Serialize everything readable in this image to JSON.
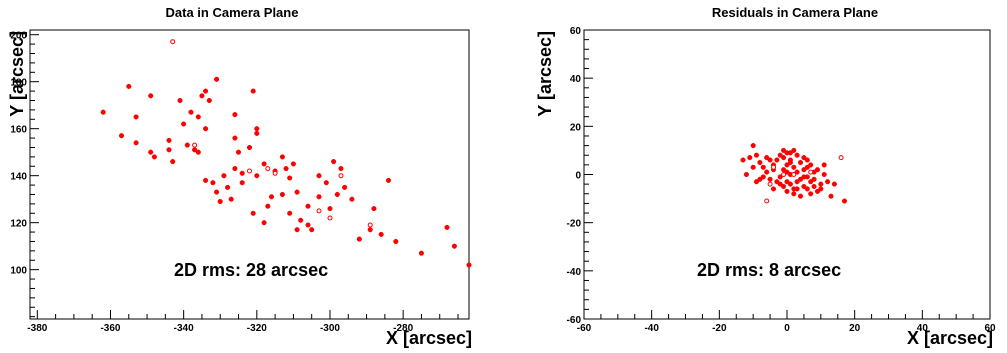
{
  "colors": {
    "marker": "#ff0000",
    "axis": "#000000",
    "background": "#ffffff"
  },
  "chart_data": [
    {
      "type": "scatter",
      "title": "Data in Camera Plane",
      "xlabel": "X [arcsec]",
      "ylabel": "Y [arcsec]",
      "xlim": [
        -382,
        -262
      ],
      "ylim": [
        79,
        202
      ],
      "xticks": [
        -380,
        -360,
        -340,
        -320,
        -300,
        -280
      ],
      "yticks": [
        100,
        120,
        140,
        160,
        180,
        200
      ],
      "annotation": "2D rms: 28 arcsec",
      "grid": false,
      "legend": "none",
      "series": [
        {
          "marker": "filled",
          "points": [
            [
              -362,
              167
            ],
            [
              -355,
              178
            ],
            [
              -357,
              157
            ],
            [
              -353,
              165
            ],
            [
              -349,
              174
            ],
            [
              -353,
              154
            ],
            [
              -349,
              150
            ],
            [
              -348,
              148
            ],
            [
              -344,
              155
            ],
            [
              -343,
              146
            ],
            [
              -341,
              172
            ],
            [
              -339,
              153
            ],
            [
              -337,
              151
            ],
            [
              -336,
              165
            ],
            [
              -335,
              174
            ],
            [
              -334,
              176
            ],
            [
              -333,
              172
            ],
            [
              -331,
              181
            ],
            [
              -334,
              160
            ],
            [
              -334,
              138
            ],
            [
              -332,
              137
            ],
            [
              -331,
              133
            ],
            [
              -330,
              129
            ],
            [
              -329,
              140
            ],
            [
              -328,
              135
            ],
            [
              -326,
              166
            ],
            [
              -326,
              156
            ],
            [
              -325,
              150
            ],
            [
              -324,
              141
            ],
            [
              -322,
              152
            ],
            [
              -320,
              158
            ],
            [
              -321,
              176
            ],
            [
              -318,
              145
            ],
            [
              -317,
              127
            ],
            [
              -316,
              131
            ],
            [
              -318,
              120
            ],
            [
              -313,
              148
            ],
            [
              -312,
              143
            ],
            [
              -311,
              139
            ],
            [
              -310,
              145
            ],
            [
              -309,
              133
            ],
            [
              -308,
              121
            ],
            [
              -306,
              119
            ],
            [
              -305,
              117
            ],
            [
              -303,
              140
            ],
            [
              -301,
              137
            ],
            [
              -299,
              146
            ],
            [
              -297,
              143
            ],
            [
              -296,
              135
            ],
            [
              -294,
              130
            ],
            [
              -292,
              113
            ],
            [
              -289,
              117
            ],
            [
              -288,
              126
            ],
            [
              -286,
              115
            ],
            [
              -284,
              138
            ],
            [
              -282,
              112
            ],
            [
              -275,
              107
            ],
            [
              -268,
              118
            ],
            [
              -266,
              110
            ],
            [
              -262,
              102
            ],
            [
              -320,
              160
            ],
            [
              -327,
              130
            ],
            [
              -303,
              131
            ],
            [
              -309,
              117
            ],
            [
              -340,
              162
            ],
            [
              -321,
              124
            ],
            [
              -311,
              124
            ],
            [
              -306,
              127
            ],
            [
              -315,
              142
            ],
            [
              -324,
              137
            ],
            [
              -313,
              132
            ],
            [
              -298,
              132
            ],
            [
              -320,
              140
            ],
            [
              -336,
              150
            ],
            [
              -344,
              151
            ],
            [
              -326,
              143
            ],
            [
              -300,
              126
            ],
            [
              -338,
              167
            ]
          ]
        },
        {
          "marker": "open",
          "points": [
            [
              -343,
              197
            ],
            [
              -337,
              153
            ],
            [
              -322,
              142
            ],
            [
              -315,
              141
            ],
            [
              -303,
              125
            ],
            [
              -300,
              122
            ],
            [
              -297,
              140
            ],
            [
              -289,
              119
            ],
            [
              -317,
              143
            ]
          ]
        }
      ]
    },
    {
      "type": "scatter",
      "title": "Residuals in Camera Plane",
      "xlabel": "X [arcsec]",
      "ylabel": "Y [arcsec]",
      "xlim": [
        -60,
        60
      ],
      "ylim": [
        -60,
        60
      ],
      "xticks": [
        -60,
        -40,
        -20,
        0,
        20,
        40,
        60
      ],
      "yticks": [
        -60,
        -40,
        -20,
        0,
        20,
        40,
        60
      ],
      "annotation": "2D rms: 8 arcsec",
      "grid": false,
      "legend": "none",
      "series": [
        {
          "marker": "filled",
          "points": [
            [
              -13,
              6
            ],
            [
              -11,
              7
            ],
            [
              -10,
              12
            ],
            [
              -9,
              8
            ],
            [
              -8,
              5
            ],
            [
              -7,
              3
            ],
            [
              -6,
              1
            ],
            [
              -5,
              -2
            ],
            [
              -4,
              4
            ],
            [
              -3,
              6
            ],
            [
              -2,
              -1
            ],
            [
              -1,
              2
            ],
            [
              0,
              9
            ],
            [
              0,
              -3
            ],
            [
              1,
              6
            ],
            [
              1,
              -4
            ],
            [
              2,
              3
            ],
            [
              2,
              -6
            ],
            [
              3,
              1
            ],
            [
              3,
              8
            ],
            [
              4,
              -2
            ],
            [
              4,
              5
            ],
            [
              5,
              -5
            ],
            [
              5,
              2
            ],
            [
              6,
              -1
            ],
            [
              6,
              6
            ],
            [
              7,
              -3
            ],
            [
              7,
              4
            ],
            [
              8,
              1
            ],
            [
              9,
              -7
            ],
            [
              10,
              -4
            ],
            [
              11,
              0
            ],
            [
              13,
              -9
            ],
            [
              17,
              -11
            ],
            [
              -7,
              -1
            ],
            [
              -5,
              6
            ],
            [
              -3,
              -3
            ],
            [
              -2,
              8
            ],
            [
              -1,
              -5
            ],
            [
              0,
              4
            ],
            [
              1,
              0
            ],
            [
              2,
              -8
            ],
            [
              3,
              -6
            ],
            [
              4,
              -9
            ],
            [
              5,
              -1
            ],
            [
              6,
              3
            ],
            [
              8,
              -5
            ],
            [
              9,
              2
            ],
            [
              12,
              -3
            ],
            [
              -10,
              3
            ],
            [
              -8,
              -2
            ],
            [
              -6,
              7
            ],
            [
              -4,
              2
            ],
            [
              -2,
              -4
            ],
            [
              0,
              1
            ],
            [
              2,
              10
            ],
            [
              1,
              9
            ],
            [
              -1,
              7
            ],
            [
              0,
              -7
            ],
            [
              3,
              -3
            ],
            [
              6,
              -6
            ],
            [
              8,
              -2
            ],
            [
              10,
              -6
            ],
            [
              14,
              -4
            ],
            [
              -12,
              0
            ],
            [
              -9,
              -3
            ],
            [
              -4,
              -6
            ],
            [
              -1,
              10
            ],
            [
              1,
              5
            ],
            [
              5,
              7
            ],
            [
              7,
              -8
            ],
            [
              11,
              4
            ]
          ]
        },
        {
          "marker": "open",
          "points": [
            [
              -5,
              -4
            ],
            [
              -6,
              -11
            ],
            [
              2,
              0
            ],
            [
              7,
              1
            ],
            [
              16,
              7
            ],
            [
              -4,
              3
            ],
            [
              -1,
              0
            ]
          ]
        }
      ]
    }
  ]
}
